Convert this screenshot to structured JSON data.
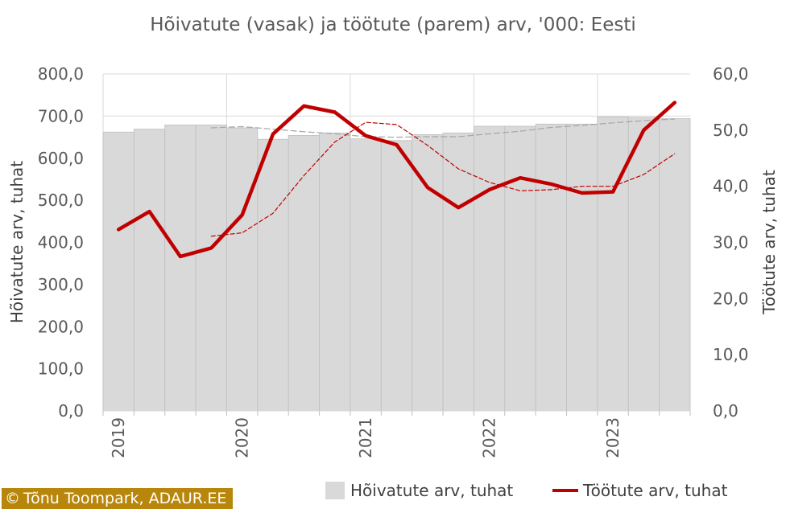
{
  "title": "Hõivatute (vasak) ja töötute (parem) arv, '000: Eesti",
  "credit": {
    "symbol": "©",
    "text": "Tõnu Toompark, ADAUR.EE"
  },
  "chart_data": {
    "type": "bar+line",
    "x": [
      "2019 Q1",
      "2019 Q2",
      "2019 Q3",
      "2019 Q4",
      "2020 Q1",
      "2020 Q2",
      "2020 Q3",
      "2020 Q4",
      "2021 Q1",
      "2021 Q2",
      "2021 Q3",
      "2021 Q4",
      "2022 Q1",
      "2022 Q2",
      "2022 Q3",
      "2022 Q4",
      "2023 Q1",
      "2023 Q2",
      "2023 Q3"
    ],
    "x_tick_labels": [
      "2019",
      "2020",
      "2021",
      "2022",
      "2023"
    ],
    "series": [
      {
        "name": "Hõivatute arv, tuhat",
        "type": "bar",
        "axis": "left",
        "color": "#d9d9d9",
        "values": [
          662,
          669,
          679,
          679,
          672,
          645,
          654,
          660,
          646,
          642,
          656,
          660,
          676,
          676,
          681,
          681,
          698,
          697,
          694
        ]
      },
      {
        "name": "Töötute arv, tuhat",
        "type": "line",
        "axis": "right",
        "color": "#c00000",
        "values": [
          32.3,
          35.5,
          27.5,
          29.0,
          34.9,
          49.3,
          54.3,
          53.2,
          49.0,
          47.4,
          39.8,
          36.2,
          39.4,
          41.5,
          40.4,
          38.8,
          39.0,
          50.0,
          54.9
        ]
      },
      {
        "type": "line",
        "style": "dashed",
        "axis": "left",
        "role": "moving average of Hõivatute arv",
        "color": "#a6a6a6",
        "values": [
          null,
          null,
          null,
          672,
          675,
          669,
          663,
          658,
          651,
          650,
          651,
          651,
          658,
          664,
          673,
          678,
          684,
          689,
          693
        ]
      },
      {
        "type": "line",
        "style": "dashed",
        "axis": "right",
        "role": "moving average of Töötute arv",
        "color": "#c00000",
        "values": [
          null,
          null,
          null,
          31.1,
          31.7,
          35.2,
          41.9,
          47.9,
          51.4,
          51.0,
          47.3,
          43.1,
          40.7,
          39.2,
          39.4,
          40.0,
          40.0,
          42.1,
          45.8
        ]
      }
    ],
    "y_left": {
      "label": "Hõivatute arv, tuhat",
      "min": 0,
      "max": 800,
      "step": 100,
      "ticks": [
        "0,0",
        "100,0",
        "200,0",
        "300,0",
        "400,0",
        "500,0",
        "600,0",
        "700,0",
        "800,0"
      ]
    },
    "y_right": {
      "label": "Töötute arv, tuhat",
      "min": 0,
      "max": 60,
      "step": 10,
      "ticks": [
        "0,0",
        "10,0",
        "20,0",
        "30,0",
        "40,0",
        "50,0",
        "60,0"
      ]
    },
    "grid": true,
    "legend_position": "bottom-right"
  }
}
